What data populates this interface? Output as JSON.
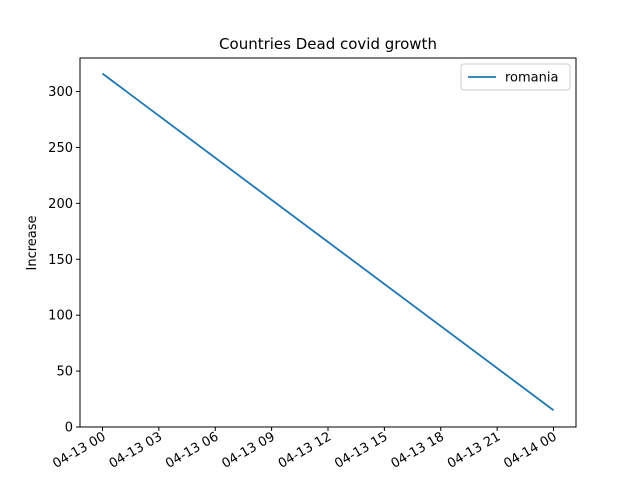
{
  "chart_data": {
    "type": "line",
    "title": "Countries Dead covid growth",
    "xlabel": "",
    "ylabel": "Increase",
    "x_tick_labels": [
      "04-13 00",
      "04-13 03",
      "04-13 06",
      "04-13 09",
      "04-13 12",
      "04-13 15",
      "04-13 18",
      "04-13 21",
      "04-14 00"
    ],
    "y_ticks": [
      0,
      50,
      100,
      150,
      200,
      250,
      300
    ],
    "ylim": [
      0,
      330
    ],
    "grid": false,
    "legend_position": "top-right",
    "series": [
      {
        "name": "romania",
        "color": "#1f77b4",
        "x": [
          "2020-04-13 00:00",
          "2020-04-14 00:00"
        ],
        "y": [
          316,
          15
        ]
      }
    ]
  }
}
